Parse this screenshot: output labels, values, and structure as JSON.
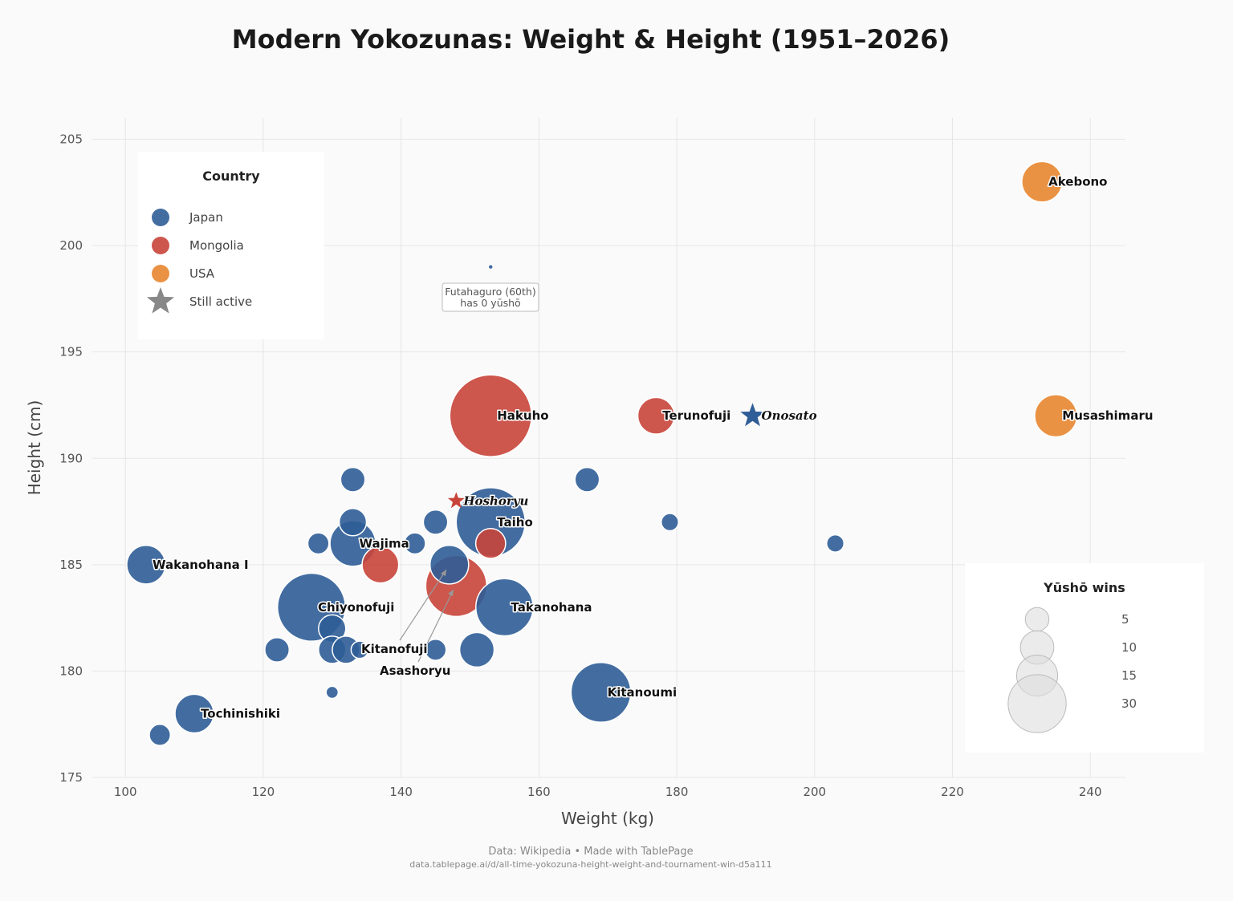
{
  "chart_data": {
    "type": "scatter",
    "title": "Modern Yokozunas: Weight & Height (1951–2026)",
    "xlabel": "Weight (kg)",
    "ylabel": "Height (cm)",
    "xlim": [
      95.2,
      245.1
    ],
    "ylim": [
      175,
      206
    ],
    "xticks": [
      100,
      120,
      140,
      160,
      180,
      200,
      220,
      240
    ],
    "yticks": [
      175,
      180,
      185,
      190,
      195,
      200,
      205
    ],
    "grid": true,
    "colors": {
      "Japan": "#2f5d97",
      "Mongolia": "#c8443a",
      "USA": "#e8862f"
    },
    "legend_country": {
      "title": "Country",
      "placement": "top-left",
      "items": [
        {
          "label": "Japan",
          "key": "Japan"
        },
        {
          "label": "Mongolia",
          "key": "Mongolia"
        },
        {
          "label": "USA",
          "key": "USA"
        },
        {
          "label": "Still active",
          "key": "active"
        }
      ]
    },
    "legend_size": {
      "title": "Yūshō wins",
      "placement": "bottom-right",
      "values": [
        5,
        10,
        15,
        30
      ],
      "labels": [
        "5",
        "10",
        "15",
        "30"
      ]
    },
    "points": [
      {
        "label": "Akebono",
        "country": "USA",
        "weight": 233,
        "height": 203,
        "yusho": 11
      },
      {
        "label": "Musashimaru",
        "country": "USA",
        "weight": 235,
        "height": 192,
        "yusho": 12
      },
      {
        "label": "Terunofuji",
        "country": "Mongolia",
        "weight": 177,
        "height": 192,
        "yusho": 9
      },
      {
        "label": "Onosato",
        "country": "Japan",
        "weight": 191,
        "height": 192,
        "yusho": 5,
        "active": true
      },
      {
        "label": "Hakuho",
        "country": "Mongolia",
        "weight": 153,
        "height": 192,
        "yusho": 45
      },
      {
        "label": "Hoshoryu",
        "country": "Mongolia",
        "weight": 148,
        "height": 188,
        "yusho": 3,
        "active": true
      },
      {
        "label": "Taiho",
        "country": "Japan",
        "weight": 153,
        "height": 187,
        "yusho": 32
      },
      {
        "label": "",
        "country": "Mongolia",
        "weight": 153,
        "height": 186,
        "yusho": 6
      },
      {
        "label": "Wajima",
        "country": "Japan",
        "weight": 133,
        "height": 186,
        "yusho": 14
      },
      {
        "label": "",
        "country": "Japan",
        "weight": 133,
        "height": 187,
        "yusho": 5
      },
      {
        "label": "",
        "country": "Japan",
        "weight": 133,
        "height": 189,
        "yusho": 4
      },
      {
        "label": "",
        "country": "Japan",
        "weight": 128,
        "height": 186,
        "yusho": 3
      },
      {
        "label": "",
        "country": "Japan",
        "weight": 142,
        "height": 186,
        "yusho": 3
      },
      {
        "label": "",
        "country": "Japan",
        "weight": 145,
        "height": 187,
        "yusho": 4
      },
      {
        "label": "",
        "country": "Mongolia",
        "weight": 137,
        "height": 185,
        "yusho": 9
      },
      {
        "label": "Asashoryu",
        "country": "Mongolia",
        "weight": 148,
        "height": 184,
        "yusho": 25,
        "arrow": true
      },
      {
        "label": "Kitanofuji",
        "country": "Japan",
        "weight": 147,
        "height": 185,
        "yusho": 10,
        "arrow": true
      },
      {
        "label": "Takanohana",
        "country": "Japan",
        "weight": 155,
        "height": 183,
        "yusho": 22
      },
      {
        "label": "Chiyonofuji",
        "country": "Japan",
        "weight": 127,
        "height": 183,
        "yusho": 31
      },
      {
        "label": "",
        "country": "Japan",
        "weight": 130,
        "height": 182,
        "yusho": 5
      },
      {
        "label": "",
        "country": "Japan",
        "weight": 130,
        "height": 181,
        "yusho": 5
      },
      {
        "label": "",
        "country": "Japan",
        "weight": 132,
        "height": 181,
        "yusho": 5
      },
      {
        "label": "",
        "country": "Japan",
        "weight": 134,
        "height": 181,
        "yusho": 2
      },
      {
        "label": "",
        "country": "Japan",
        "weight": 122,
        "height": 181,
        "yusho": 4
      },
      {
        "label": "",
        "country": "Japan",
        "weight": 145,
        "height": 181,
        "yusho": 3
      },
      {
        "label": "",
        "country": "Japan",
        "weight": 151,
        "height": 181,
        "yusho": 8
      },
      {
        "label": "",
        "country": "Japan",
        "weight": 167,
        "height": 189,
        "yusho": 4
      },
      {
        "label": "",
        "country": "Japan",
        "weight": 179,
        "height": 187,
        "yusho": 2
      },
      {
        "label": "",
        "country": "Japan",
        "weight": 203,
        "height": 186,
        "yusho": 2
      },
      {
        "label": "Kitanoumi",
        "country": "Japan",
        "weight": 169,
        "height": 179,
        "yusho": 24
      },
      {
        "label": "",
        "country": "Japan",
        "weight": 130,
        "height": 179,
        "yusho": 1
      },
      {
        "label": "Tochinishiki",
        "country": "Japan",
        "weight": 110,
        "height": 178,
        "yusho": 10
      },
      {
        "label": "",
        "country": "Japan",
        "weight": 105,
        "height": 177,
        "yusho": 3
      },
      {
        "label": "Wakanohana I",
        "country": "Japan",
        "weight": 103,
        "height": 185,
        "yusho": 10
      },
      {
        "label": "",
        "country": "Japan",
        "weight": 153,
        "height": 199,
        "yusho": 0
      }
    ],
    "annotations": [
      {
        "lines": [
          "Futahaguro (60th)",
          "has 0 yūshō"
        ],
        "weight": 153,
        "height": 199
      }
    ]
  },
  "footer": {
    "source": "Data: Wikipedia  •  Made with TablePage",
    "url": "data.tablepage.ai/d/all-time-yokozuna-height-weight-and-tournament-win-d5a111"
  }
}
